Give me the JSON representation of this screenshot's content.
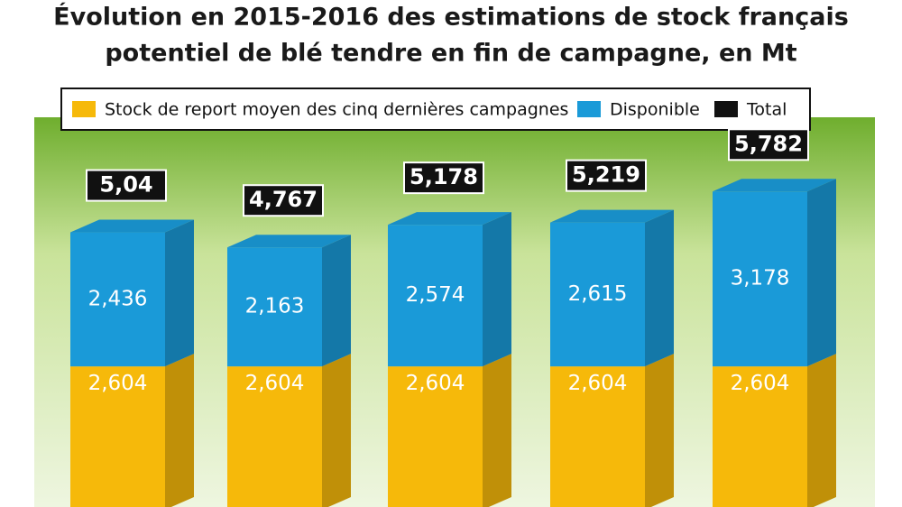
{
  "chart_data": {
    "type": "stacked-bar-3d",
    "title_lines": [
      "Évolution en 2015-2016 des estimations de stock français",
      "potentiel de blé tendre en fin de campagne, en Mt"
    ],
    "categories": [
      null,
      null,
      null,
      null,
      null
    ],
    "series": [
      {
        "name": "Stock de report moyen des cinq dernières campagnes",
        "color": "#f6b90a",
        "values": [
          2.604,
          2.604,
          2.604,
          2.604,
          2.604
        ],
        "value_labels": [
          "2,604",
          "2,604",
          "2,604",
          "2,604",
          "2,604"
        ]
      },
      {
        "name": "Disponible",
        "color": "#1a9ad8",
        "values": [
          2.436,
          2.163,
          2.574,
          2.615,
          3.178
        ],
        "value_labels": [
          "2,436",
          "2,163",
          "2,574",
          "2,615",
          "3,178"
        ]
      },
      {
        "name": "Total",
        "color": "#111111",
        "values": [
          5.04,
          4.767,
          5.178,
          5.219,
          5.782
        ],
        "value_labels": [
          "5,04",
          "4,767",
          "5,178",
          "5,219",
          "5,782"
        ]
      }
    ],
    "legend": "top"
  }
}
